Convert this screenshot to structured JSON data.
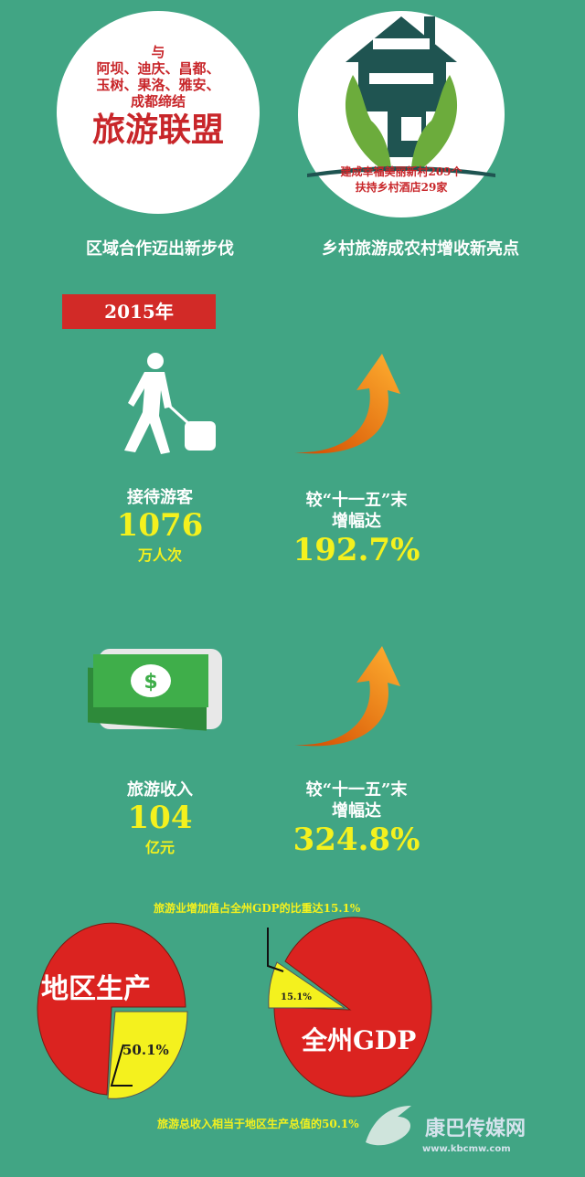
{
  "alliance": {
    "line1": "与",
    "line2": "阿坝、迪庆、昌都、",
    "line3": "玉树、果洛、雅安、",
    "line4": "成都缔结",
    "title": "旅游联盟",
    "caption": "区域合作迈出新步伐"
  },
  "rural": {
    "line1": "建成幸福美丽新村209个",
    "line2": "扶持乡村酒店29家",
    "caption": "乡村旅游成农村增收新亮点",
    "icon": "house-in-hands-icon"
  },
  "year_banner": "2015年",
  "visitors": {
    "label": "接待游客",
    "value": "1076",
    "unit": "万人次",
    "growth_label1": "较“十一五”末",
    "growth_label2": "增幅达",
    "growth_value": "192.7%",
    "icon": "traveler-icon"
  },
  "income": {
    "label": "旅游收入",
    "value": "104",
    "unit": "亿元",
    "growth_label1": "较“十一五”末",
    "growth_label2": "增幅达",
    "growth_value": "324.8%",
    "icon": "money-icon"
  },
  "colors": {
    "background": "#41a584",
    "red": "#db2320",
    "yellow": "#f4f11e"
  },
  "chart_data": [
    {
      "type": "pie",
      "title": "地区生产",
      "values": [
        50.1
      ],
      "data_labels": [
        "50.1%"
      ],
      "annotation": "旅游总收入相当于地区生产总值的50.1%"
    },
    {
      "type": "pie",
      "title": "全州GDP",
      "values": [
        15.1
      ],
      "data_labels": [
        "15.1%"
      ],
      "annotation": "旅游业增加值占全州GDP的比重达15.1%"
    }
  ],
  "watermark": {
    "name": "康巴传媒网",
    "url": "www.kbcmw.com"
  }
}
